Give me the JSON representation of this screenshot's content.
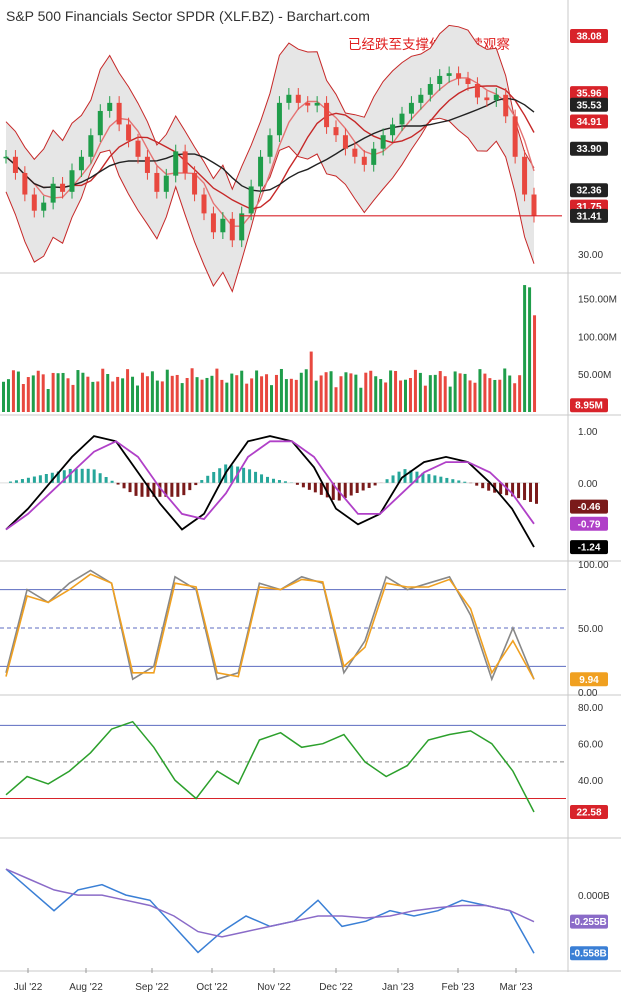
{
  "page": {
    "title": "S&P 500 Financials Sector SPDR (XLF.BZ) - Barchart.com",
    "annotation": "已经跌至支撑位，继续观察"
  },
  "chart_data": {
    "type": "line",
    "x_labels": [
      "Jul '22",
      "Aug '22",
      "Sep '22",
      "Oct '22",
      "Nov '22",
      "Dec '22",
      "Jan '23",
      "Feb '23",
      "Mar '23"
    ],
    "panels": [
      {
        "name": "price",
        "type": "candlestick",
        "ylim": [
          29.4,
          38.6
        ],
        "y_ticks": [
          "30.00"
        ],
        "close_series": [
          33.6,
          33.0,
          32.2,
          31.6,
          31.9,
          32.6,
          32.3,
          33.1,
          33.6,
          34.4,
          35.3,
          35.6,
          34.8,
          34.2,
          33.6,
          33.0,
          32.3,
          32.9,
          33.8,
          33.0,
          32.2,
          31.5,
          30.8,
          31.3,
          30.5,
          31.5,
          32.5,
          33.6,
          34.4,
          35.6,
          35.9,
          35.6,
          35.5,
          35.6,
          34.7,
          34.4,
          33.9,
          33.6,
          33.3,
          33.9,
          34.4,
          34.8,
          35.2,
          35.6,
          35.9,
          36.3,
          36.6,
          36.7,
          36.5,
          36.3,
          35.8,
          35.7,
          35.9,
          35.1,
          33.6,
          32.2,
          31.41
        ],
        "support_line": 31.41,
        "value_tags": [
          {
            "label": "38.08",
            "value": 38.08,
            "color": "#d8232a"
          },
          {
            "label": "35.96",
            "value": 35.96,
            "color": "#d8232a"
          },
          {
            "label": "35.53",
            "value": 35.53,
            "color": "#222222"
          },
          {
            "label": "34.91",
            "value": 34.91,
            "color": "#d8232a"
          },
          {
            "label": "33.90",
            "value": 33.9,
            "color": "#222222"
          },
          {
            "label": "32.36",
            "value": 32.36,
            "color": "#222222"
          },
          {
            "label": "31.75",
            "value": 31.75,
            "color": "#d8232a"
          },
          {
            "label": "31.41",
            "value": 31.41,
            "color": "#222222"
          }
        ]
      },
      {
        "name": "volume",
        "type": "bar",
        "ylim": [
          0,
          180
        ],
        "unit": "M",
        "y_ticks": [
          "150.00M",
          "100.00M",
          "50.00M"
        ],
        "last_label": "8.95M",
        "last_color": "#d8232a"
      },
      {
        "name": "macd",
        "type": "line",
        "ylim": [
          -1.45,
          1.25
        ],
        "y_ticks": [
          "1.00",
          "0.00"
        ],
        "series": [
          {
            "values": [
              -0.9,
              -0.5,
              0.0,
              0.5,
              0.9,
              0.8,
              0.2,
              -0.4,
              -0.9,
              -0.6,
              0.2,
              0.8,
              0.9,
              0.8,
              0.3,
              -0.5,
              -0.8,
              -0.6,
              0.1,
              0.4,
              0.5,
              0.4,
              0.0,
              -0.5,
              -1.24
            ],
            "color": "#000000"
          },
          {
            "values": [
              -0.9,
              -0.6,
              -0.2,
              0.2,
              0.6,
              0.8,
              0.5,
              -0.1,
              -0.6,
              -0.7,
              -0.2,
              0.5,
              0.8,
              0.8,
              0.5,
              -0.1,
              -0.6,
              -0.6,
              -0.2,
              0.2,
              0.4,
              0.4,
              0.2,
              -0.2,
              -0.79
            ],
            "color": "#b040c8"
          }
        ],
        "value_tags": [
          {
            "label": "-0.46",
            "value": -0.46,
            "color": "#7a1a1a"
          },
          {
            "label": "-0.79",
            "value": -0.79,
            "color": "#b040c8"
          },
          {
            "label": "-1.24",
            "value": -1.24,
            "color": "#000000"
          }
        ]
      },
      {
        "name": "stochastic",
        "type": "line",
        "ylim": [
          0,
          100
        ],
        "y_ticks": [
          "100.00",
          "50.00",
          "0.00"
        ],
        "levels": [
          80,
          50,
          20
        ],
        "series": [
          {
            "values": [
              15,
              80,
              70,
              85,
              95,
              85,
              10,
              20,
              90,
              80,
              10,
              15,
              85,
              80,
              90,
              85,
              15,
              40,
              90,
              80,
              85,
              90,
              60,
              10,
              50,
              9.94
            ],
            "color": "#888888"
          },
          {
            "values": [
              12,
              75,
              70,
              80,
              92,
              85,
              15,
              15,
              85,
              82,
              15,
              12,
              82,
              80,
              88,
              86,
              20,
              35,
              85,
              82,
              82,
              88,
              65,
              15,
              40,
              9.94
            ],
            "color": "#f0a020"
          }
        ],
        "value_tags": [
          {
            "label": "9.94",
            "value": 9.94,
            "color": "#f0a020"
          }
        ]
      },
      {
        "name": "rsi",
        "type": "line",
        "ylim": [
          10,
          85
        ],
        "y_ticks": [
          "80.00",
          "60.00",
          "40.00"
        ],
        "levels": [
          70,
          50,
          30
        ],
        "series": [
          {
            "values": [
              32,
              42,
              38,
              45,
              55,
              68,
              72,
              58,
              40,
              30,
              45,
              38,
              62,
              66,
              58,
              60,
              65,
              50,
              42,
              48,
              62,
              65,
              67,
              60,
              45,
              22.58
            ],
            "color": "#2ca02c"
          }
        ],
        "value_tags": [
          {
            "label": "22.58",
            "value": 22.58,
            "color": "#d8232a"
          }
        ]
      },
      {
        "name": "obv",
        "type": "line",
        "ylim": [
          -0.7,
          0.52
        ],
        "y_ticks": [
          "0.000B"
        ],
        "series": [
          {
            "values": [
              0.25,
              0.05,
              -0.15,
              0.05,
              0.1,
              0.0,
              -0.05,
              -0.3,
              -0.55,
              -0.35,
              -0.2,
              -0.3,
              -0.25,
              -0.05,
              -0.3,
              -0.25,
              -0.15,
              -0.2,
              -0.15,
              -0.05,
              -0.1,
              -0.15,
              -0.558
            ],
            "color": "#3a7fd5"
          },
          {
            "values": [
              0.25,
              0.15,
              0.05,
              0.0,
              0.0,
              -0.05,
              -0.1,
              -0.2,
              -0.35,
              -0.4,
              -0.35,
              -0.3,
              -0.25,
              -0.2,
              -0.2,
              -0.22,
              -0.2,
              -0.15,
              -0.12,
              -0.1,
              -0.1,
              -0.15,
              -0.255
            ],
            "color": "#8a6bc8"
          }
        ],
        "value_tags": [
          {
            "label": "-0.255B",
            "value": -0.255,
            "color": "#8a6bc8"
          },
          {
            "label": "-0.558B",
            "value": -0.558,
            "color": "#3a7fd5"
          }
        ]
      }
    ]
  }
}
